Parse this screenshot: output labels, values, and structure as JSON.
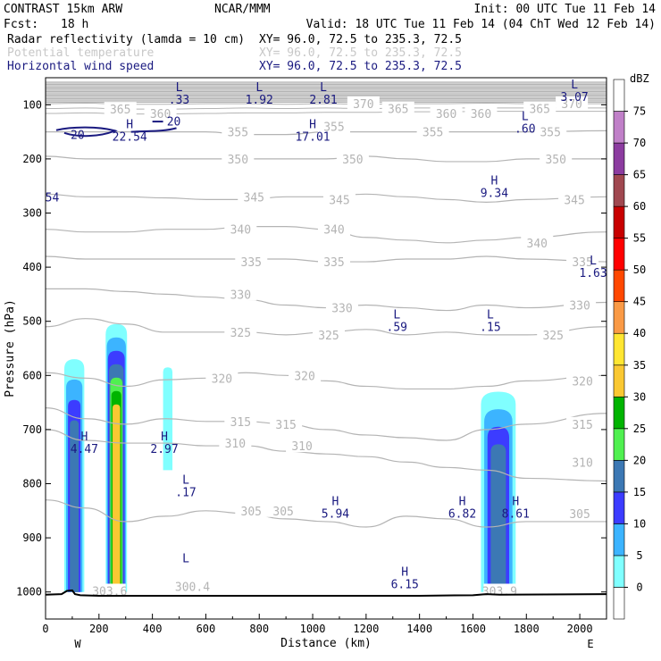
{
  "header": {
    "model": "CONTRAST 15km ARW",
    "center": "NCAR/MMM",
    "init": "Init: 00 UTC Tue 11 Feb 14",
    "fcst_label": "Fcst:",
    "fcst_value": "18 h",
    "valid": "Valid: 18 UTC Tue 11 Feb 14 (04 ChT Wed 12 Feb 14)",
    "fields": [
      {
        "name": "Radar reflectivity (lamda = 10 cm)",
        "xy": "XY=  96.0, 72.5 to 235.3, 72.5",
        "color": "#000000"
      },
      {
        "name": "Potential temperature",
        "xy": "XY=  96.0, 72.5 to 235.3, 72.5",
        "color": "#c8c8c8"
      },
      {
        "name": "Horizontal wind speed",
        "xy": "XY=  96.0, 72.5 to 235.3, 72.5",
        "color": "#1a1a80"
      }
    ]
  },
  "chart_data": {
    "type": "cross-section",
    "xlabel": "Distance (km)",
    "ylabel": "Pressure (hPa)",
    "xlim": [
      0,
      2100
    ],
    "ylim": [
      1050,
      50
    ],
    "x_ticks": [
      0,
      200,
      400,
      600,
      800,
      1000,
      1200,
      1400,
      1600,
      1800,
      2000
    ],
    "y_ticks": [
      100,
      200,
      300,
      400,
      500,
      600,
      700,
      800,
      900,
      1000
    ],
    "west_label": "W",
    "east_label": "E",
    "colorbar": {
      "unit": "dBZ",
      "levels": [
        0,
        5,
        10,
        15,
        20,
        25,
        30,
        35,
        40,
        45,
        50,
        55,
        60,
        65,
        70,
        75
      ],
      "colors": [
        "#ffffff",
        "#80ffff",
        "#3cb4ff",
        "#3c3cff",
        "#3c78b4",
        "#50f050",
        "#00b400",
        "#fac832",
        "#ffe632",
        "#fa9a46",
        "#ff4800",
        "#ff0000",
        "#c80000",
        "#a04850",
        "#8c3ca0",
        "#c080c8",
        "#ffffff"
      ]
    },
    "theta_contours": [
      {
        "value": 305,
        "p": [
          830,
          845,
          870,
          860,
          850,
          855,
          865,
          870,
          880,
          860,
          865,
          880,
          870,
          870
        ]
      },
      {
        "value": 310,
        "p": [
          700,
          720,
          725,
          725,
          730,
          730,
          740,
          745,
          750,
          760,
          770,
          775,
          790,
          795
        ]
      },
      {
        "value": 315,
        "p": [
          660,
          680,
          690,
          680,
          685,
          685,
          690,
          700,
          710,
          715,
          720,
          700,
          690,
          670
        ]
      },
      {
        "value": 320,
        "p": [
          595,
          605,
          620,
          608,
          605,
          595,
          600,
          610,
          620,
          625,
          625,
          620,
          610,
          600
        ]
      },
      {
        "value": 325,
        "p": [
          510,
          495,
          505,
          520,
          520,
          520,
          525,
          520,
          515,
          525,
          520,
          525,
          525,
          510
        ]
      },
      {
        "value": 330,
        "p": [
          440,
          440,
          445,
          450,
          455,
          460,
          470,
          475,
          470,
          475,
          480,
          470,
          475,
          465
        ]
      },
      {
        "value": 335,
        "p": [
          380,
          385,
          385,
          385,
          385,
          385,
          385,
          390,
          390,
          385,
          385,
          380,
          385,
          390
        ]
      },
      {
        "value": 340,
        "p": [
          330,
          335,
          335,
          330,
          330,
          325,
          325,
          330,
          345,
          350,
          355,
          350,
          345,
          335
        ]
      },
      {
        "value": 345,
        "p": [
          265,
          270,
          270,
          272,
          275,
          275,
          270,
          270,
          265,
          270,
          275,
          280,
          275,
          270
        ]
      },
      {
        "value": 350,
        "p": [
          195,
          200,
          200,
          200,
          200,
          200,
          200,
          200,
          195,
          200,
          205,
          205,
          200,
          200
        ]
      },
      {
        "value": 355,
        "p": [
          150,
          150,
          150,
          150,
          150,
          155,
          155,
          150,
          150,
          150,
          150,
          150,
          150,
          148
        ]
      },
      {
        "value": 360,
        "p": [
          116,
          115,
          117,
          117,
          116,
          115,
          115,
          114,
          114,
          113,
          113,
          112,
          112,
          112
        ]
      },
      {
        "value": 365,
        "p": [
          107,
          106,
          108,
          108,
          107,
          106,
          107,
          106,
          107,
          106,
          106,
          106,
          106,
          106
        ]
      },
      {
        "value": 370,
        "p": [
          98,
          97,
          99,
          99,
          98,
          98,
          99,
          98,
          99,
          98,
          98,
          97,
          98,
          98
        ]
      }
    ],
    "theta_x": [
      0,
      150,
      300,
      450,
      600,
      750,
      900,
      1050,
      1200,
      1350,
      1500,
      1650,
      1800,
      2100
    ],
    "theta_labels": [
      {
        "text": "370",
        "x": 1190,
        "p": 98
      },
      {
        "text": "365",
        "x": 1320,
        "p": 107
      },
      {
        "text": "360",
        "x": 1500,
        "p": 116
      },
      {
        "text": "360",
        "x": 1630,
        "p": 116
      },
      {
        "text": "365",
        "x": 1850,
        "p": 107
      },
      {
        "text": "370",
        "x": 1970,
        "p": 98
      },
      {
        "text": "365",
        "x": 280,
        "p": 108
      },
      {
        "text": "360",
        "x": 430,
        "p": 116
      },
      {
        "text": "355",
        "x": 1080,
        "p": 140
      },
      {
        "text": "355",
        "x": 720,
        "p": 150
      },
      {
        "text": "355",
        "x": 1450,
        "p": 150
      },
      {
        "text": "355",
        "x": 1890,
        "p": 150
      },
      {
        "text": "350",
        "x": 720,
        "p": 200
      },
      {
        "text": "350",
        "x": 1150,
        "p": 200
      },
      {
        "text": "350",
        "x": 1910,
        "p": 200
      },
      {
        "text": "345",
        "x": 780,
        "p": 270
      },
      {
        "text": "345",
        "x": 1100,
        "p": 275
      },
      {
        "text": "345",
        "x": 1980,
        "p": 275
      },
      {
        "text": "340",
        "x": 730,
        "p": 330
      },
      {
        "text": "340",
        "x": 1080,
        "p": 330
      },
      {
        "text": "340",
        "x": 1840,
        "p": 355
      },
      {
        "text": "335",
        "x": 770,
        "p": 390
      },
      {
        "text": "335",
        "x": 1080,
        "p": 390
      },
      {
        "text": "335",
        "x": 2010,
        "p": 390
      },
      {
        "text": "330",
        "x": 730,
        "p": 450
      },
      {
        "text": "330",
        "x": 1110,
        "p": 475
      },
      {
        "text": "330",
        "x": 2000,
        "p": 470
      },
      {
        "text": "325",
        "x": 730,
        "p": 520
      },
      {
        "text": "325",
        "x": 1060,
        "p": 525
      },
      {
        "text": "325",
        "x": 1900,
        "p": 525
      },
      {
        "text": "320",
        "x": 660,
        "p": 605
      },
      {
        "text": "320",
        "x": 970,
        "p": 600
      },
      {
        "text": "320",
        "x": 2010,
        "p": 610
      },
      {
        "text": "315",
        "x": 730,
        "p": 685
      },
      {
        "text": "315",
        "x": 900,
        "p": 690
      },
      {
        "text": "315",
        "x": 2010,
        "p": 690
      },
      {
        "text": "310",
        "x": 710,
        "p": 725
      },
      {
        "text": "310",
        "x": 960,
        "p": 730
      },
      {
        "text": "310",
        "x": 2010,
        "p": 760
      },
      {
        "text": "305",
        "x": 770,
        "p": 850
      },
      {
        "text": "305",
        "x": 890,
        "p": 850
      },
      {
        "text": "305",
        "x": 2000,
        "p": 855
      },
      {
        "text": "300.4",
        "x": 550,
        "p": 990
      },
      {
        "text": "303.6",
        "x": 240,
        "p": 998
      },
      {
        "text": "303.9",
        "x": 1700,
        "p": 998
      }
    ],
    "wind_labels": [
      {
        "type": "L",
        "value": ".33",
        "x": 500,
        "p": 75
      },
      {
        "type": "L",
        "value": "1.92",
        "x": 800,
        "p": 75
      },
      {
        "type": "L",
        "value": "2.81",
        "x": 1040,
        "p": 75
      },
      {
        "type": "L",
        "value": "3.07",
        "x": 1980,
        "p": 70
      },
      {
        "type": "L",
        "value": ".60",
        "x": 1795,
        "p": 128
      },
      {
        "type": "H",
        "value": "22.54",
        "x": 315,
        "p": 143
      },
      {
        "type": "H",
        "value": "17.01",
        "x": 1000,
        "p": 143
      },
      {
        "type": "H",
        "value": "9.34",
        "x": 1680,
        "p": 247
      },
      {
        "type": "L",
        "value": "1.63",
        "x": 2050,
        "p": 395
      },
      {
        "type": "L",
        "value": ".59",
        "x": 1315,
        "p": 495
      },
      {
        "type": "L",
        "value": ".15",
        "x": 1665,
        "p": 495
      },
      {
        "type": "H",
        "value": "4.47",
        "x": 145,
        "p": 720
      },
      {
        "type": "H",
        "value": "2.97",
        "x": 445,
        "p": 720
      },
      {
        "type": "L",
        "value": ".17",
        "x": 525,
        "p": 800
      },
      {
        "type": "H",
        "value": "5.94",
        "x": 1085,
        "p": 840
      },
      {
        "type": "H",
        "value": "6.82",
        "x": 1560,
        "p": 840
      },
      {
        "type": "H",
        "value": "8.61",
        "x": 1760,
        "p": 840
      },
      {
        "type": "L",
        "value": "",
        "x": 525,
        "p": 945
      },
      {
        "type": "H",
        "value": "6.15",
        "x": 1345,
        "p": 970
      }
    ],
    "wind_contour_labels": [
      {
        "text": "20",
        "x": 120,
        "p": 155
      },
      {
        "text": "20",
        "x": 480,
        "p": 130
      },
      {
        "text": "54",
        "x": 25,
        "p": 270
      }
    ],
    "reflectivity_cells": [
      {
        "x0": 70,
        "x1": 145,
        "p_top": 570,
        "p_bot": 1000,
        "max_dbz": 20
      },
      {
        "x0": 225,
        "x1": 305,
        "p_top": 505,
        "p_bot": 1000,
        "max_dbz": 35
      },
      {
        "x0": 440,
        "x1": 475,
        "p_top": 585,
        "p_bot": 775,
        "max_dbz": 5
      },
      {
        "x0": 1630,
        "x1": 1760,
        "p_top": 630,
        "p_bot": 1000,
        "max_dbz": 20
      }
    ]
  }
}
